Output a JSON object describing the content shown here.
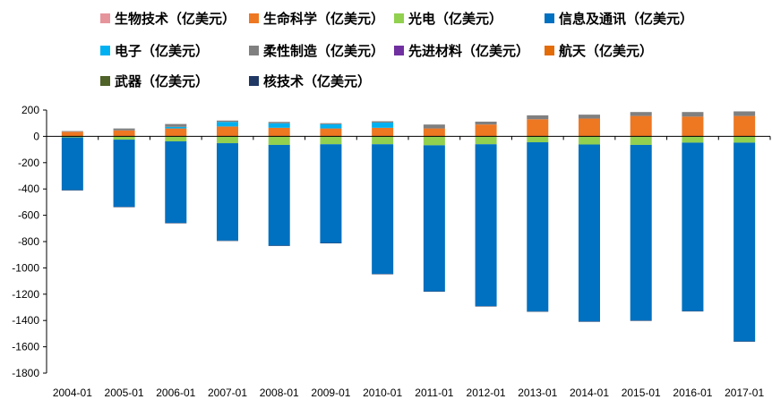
{
  "chart_data": {
    "type": "bar",
    "stacked": true,
    "title": "",
    "xlabel": "",
    "ylabel": "",
    "ylim": [
      -1800,
      200
    ],
    "yticks": [
      200,
      0,
      -200,
      -400,
      -600,
      -800,
      -1000,
      -1200,
      -1400,
      -1600,
      -1800
    ],
    "categories": [
      "2004-01",
      "2005-01",
      "2006-01",
      "2007-01",
      "2008-01",
      "2009-01",
      "2010-01",
      "2011-01",
      "2012-01",
      "2013-01",
      "2014-01",
      "2015-01",
      "2016-01",
      "2017-01"
    ],
    "series": [
      {
        "name": "生物技术（亿美元）",
        "color": "#e6949b",
        "values": [
          0,
          0,
          0,
          0,
          0,
          0,
          0,
          0,
          0,
          0,
          0,
          0,
          0,
          0
        ]
      },
      {
        "name": "生命科学（亿美元）",
        "color": "#ee7722",
        "values": [
          35,
          45,
          60,
          75,
          65,
          60,
          65,
          60,
          90,
          130,
          135,
          155,
          150,
          155
        ]
      },
      {
        "name": "光电（亿美元）",
        "color": "#92d050",
        "values": [
          -8,
          -25,
          -38,
          -52,
          -65,
          -60,
          -60,
          -68,
          -60,
          -45,
          -62,
          -65,
          -48,
          -48
        ]
      },
      {
        "name": "信息及通讯（亿美元）",
        "color": "#0070c0",
        "values": [
          -400,
          -510,
          -620,
          -740,
          -765,
          -750,
          -985,
          -1110,
          -1230,
          -1285,
          -1345,
          -1335,
          -1280,
          -1510
        ]
      },
      {
        "name": "电子（亿美元）",
        "color": "#00b0f0",
        "values": [
          0,
          0,
          12,
          35,
          35,
          32,
          40,
          0,
          0,
          0,
          0,
          0,
          0,
          0
        ]
      },
      {
        "name": "柔性制造（亿美元）",
        "color": "#808080",
        "values": [
          5,
          15,
          22,
          10,
          10,
          8,
          10,
          30,
          22,
          30,
          30,
          30,
          35,
          35
        ]
      },
      {
        "name": "先进材料（亿美元）",
        "color": "#7030a0",
        "values": [
          0,
          0,
          0,
          0,
          0,
          0,
          0,
          0,
          0,
          0,
          0,
          0,
          0,
          0
        ]
      },
      {
        "name": "航天（亿美元）",
        "color": "#e36c09",
        "values": [
          0,
          0,
          0,
          0,
          0,
          0,
          0,
          0,
          0,
          0,
          0,
          0,
          0,
          0
        ]
      },
      {
        "name": "武器（亿美元）",
        "color": "#4f6228",
        "values": [
          0,
          0,
          0,
          0,
          0,
          0,
          0,
          0,
          0,
          0,
          0,
          0,
          0,
          0
        ]
      },
      {
        "name": "核技术（亿美元）",
        "color": "#1f3864",
        "values": [
          -3,
          -3,
          -3,
          -3,
          -3,
          -3,
          -3,
          -3,
          -3,
          -3,
          -3,
          -3,
          -3,
          -3
        ]
      }
    ],
    "legend_position": "top",
    "grid": false
  }
}
